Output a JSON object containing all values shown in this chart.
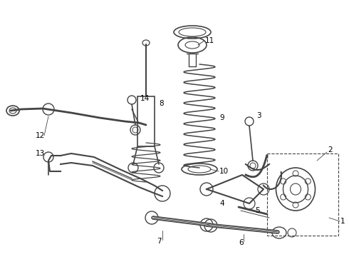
{
  "background_color": "#ffffff",
  "line_color": "#444444",
  "fig_width": 4.9,
  "fig_height": 3.6,
  "dpi": 100
}
